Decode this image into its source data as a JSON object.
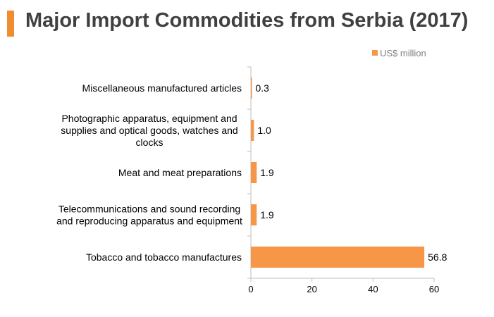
{
  "title": "Major Import Commodities from Serbia (2017)",
  "colors": {
    "accent": "#f28c32",
    "bar": "#f79646",
    "axis": "#bfbfbf"
  },
  "chart_data": {
    "type": "bar",
    "orientation": "horizontal",
    "categories": [
      [
        "Miscellaneous manufactured articles"
      ],
      [
        "Photographic apparatus, equipment and",
        "supplies and optical goods, watches and",
        "clocks"
      ],
      [
        "Meat and meat preparations"
      ],
      [
        "Telecommunications and sound recording",
        "and reproducing apparatus and equipment"
      ],
      [
        "Tobacco and tobacco manufactures"
      ]
    ],
    "series": [
      {
        "name": "US$ million",
        "values": [
          0.3,
          1.0,
          1.9,
          1.9,
          56.8
        ],
        "labels": [
          "0.3",
          "1.0",
          "1.9",
          "1.9",
          "56.8"
        ]
      }
    ],
    "xlim": [
      0,
      60
    ],
    "xticks": [
      0,
      20,
      40,
      60
    ],
    "legend_position": "top-right",
    "grid": false
  }
}
